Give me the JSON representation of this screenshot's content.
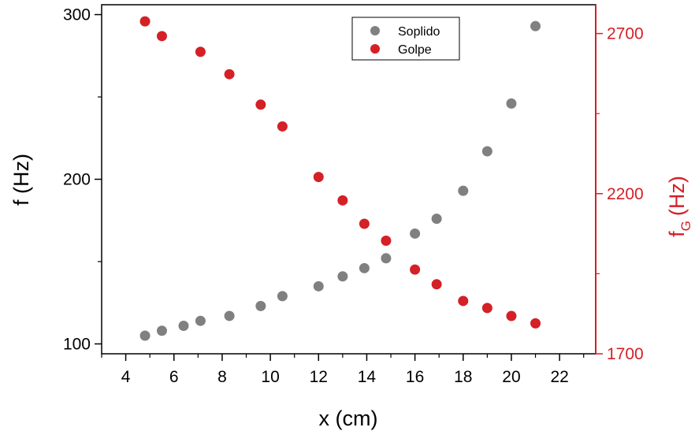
{
  "chart_data": {
    "type": "scatter",
    "title": "",
    "xlabel": "x (cm)",
    "ylabel_left": "f (Hz)",
    "ylabel_right": {
      "base": "f",
      "subscript": "G",
      "unit": "(Hz)"
    },
    "xlim": [
      3,
      23.5
    ],
    "xticks": [
      4,
      6,
      8,
      10,
      12,
      14,
      16,
      18,
      20,
      22
    ],
    "ylim_left": [
      94,
      306
    ],
    "yticks_left": [
      100,
      200,
      300
    ],
    "ylim_right": [
      1700,
      2790
    ],
    "yticks_right": [
      1700,
      2200,
      2700
    ],
    "grid": false,
    "legend_position": "top-center",
    "colors": {
      "soplido": "#808080",
      "golpe": "#d42026",
      "right_axis": "#d42026",
      "left_axis": "#000000"
    },
    "series": [
      {
        "name": "Soplido",
        "axis": "left",
        "x": [
          4.8,
          5.5,
          6.4,
          7.1,
          8.3,
          9.6,
          10.5,
          12.0,
          13.0,
          13.9,
          14.8,
          16.0,
          16.9,
          18.0,
          19.0,
          20.0,
          21.0
        ],
        "y": [
          105,
          108,
          111,
          114,
          117,
          123,
          129,
          135,
          141,
          146,
          152,
          167,
          176,
          193,
          217,
          246,
          293
        ]
      },
      {
        "name": "Golpe",
        "axis": "right",
        "x": [
          4.8,
          5.5,
          7.1,
          8.3,
          9.6,
          10.5,
          12.0,
          13.0,
          13.9,
          14.8,
          16.0,
          16.9,
          18.0,
          19.0,
          20.0,
          21.0
        ],
        "y": [
          2738,
          2692,
          2643,
          2573,
          2478,
          2410,
          2252,
          2179,
          2106,
          2053,
          1963,
          1917,
          1865,
          1843,
          1818,
          1795
        ]
      }
    ]
  }
}
